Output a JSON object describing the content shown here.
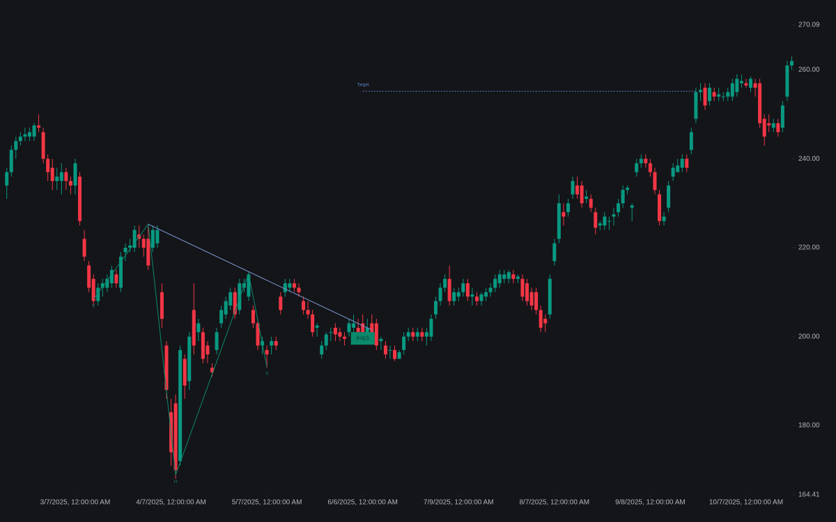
{
  "chart_data": {
    "type": "candlestick",
    "x": [
      "2025-02-13",
      "2025-02-14",
      "2025-02-18",
      "2025-02-19",
      "2025-02-20",
      "2025-02-21",
      "2025-02-24",
      "2025-02-25",
      "2025-02-26",
      "2025-02-27",
      "2025-02-28",
      "2025-03-03",
      "2025-03-04",
      "2025-03-05",
      "2025-03-06",
      "2025-03-07",
      "2025-03-10",
      "2025-03-11",
      "2025-03-12",
      "2025-03-13",
      "2025-03-14",
      "2025-03-17",
      "2025-03-18",
      "2025-03-19",
      "2025-03-20",
      "2025-03-21",
      "2025-03-24",
      "2025-03-25",
      "2025-03-26",
      "2025-03-27",
      "2025-03-28",
      "2025-03-31",
      "2025-04-01",
      "2025-04-02",
      "2025-04-03",
      "2025-04-04",
      "2025-04-07",
      "2025-04-08",
      "2025-04-09",
      "2025-04-10",
      "2025-04-11",
      "2025-04-14",
      "2025-04-15",
      "2025-04-16",
      "2025-04-17",
      "2025-04-21",
      "2025-04-22",
      "2025-04-23",
      "2025-04-24",
      "2025-04-25",
      "2025-04-28",
      "2025-04-29",
      "2025-04-30",
      "2025-05-01",
      "2025-05-02",
      "2025-05-05",
      "2025-05-06",
      "2025-05-07",
      "2025-05-08",
      "2025-05-09",
      "2025-05-12",
      "2025-05-13",
      "2025-05-14",
      "2025-05-15",
      "2025-05-16",
      "2025-05-19",
      "2025-05-20",
      "2025-05-21",
      "2025-05-22",
      "2025-05-23",
      "2025-05-27",
      "2025-05-28",
      "2025-05-29",
      "2025-05-30",
      "2025-06-02",
      "2025-06-03",
      "2025-06-04",
      "2025-06-05",
      "2025-06-06",
      "2025-06-09",
      "2025-06-10",
      "2025-06-11",
      "2025-06-12",
      "2025-06-13",
      "2025-06-16",
      "2025-06-17",
      "2025-06-18",
      "2025-06-20",
      "2025-06-23",
      "2025-06-24",
      "2025-06-25",
      "2025-06-26",
      "2025-06-27",
      "2025-06-30",
      "2025-07-01",
      "2025-07-02",
      "2025-07-03",
      "2025-07-07",
      "2025-07-08",
      "2025-07-09",
      "2025-07-10",
      "2025-07-11",
      "2025-07-14",
      "2025-07-15",
      "2025-07-16",
      "2025-07-17",
      "2025-07-18",
      "2025-07-21",
      "2025-07-22",
      "2025-07-23",
      "2025-07-24",
      "2025-07-25",
      "2025-07-28",
      "2025-07-29",
      "2025-07-30",
      "2025-07-31",
      "2025-08-01",
      "2025-08-04",
      "2025-08-05",
      "2025-08-06",
      "2025-08-07",
      "2025-08-08",
      "2025-08-11",
      "2025-08-12",
      "2025-08-13",
      "2025-08-14",
      "2025-08-15",
      "2025-08-18",
      "2025-08-19",
      "2025-08-20",
      "2025-08-21",
      "2025-08-22",
      "2025-08-25",
      "2025-08-26",
      "2025-08-27",
      "2025-08-28",
      "2025-08-29",
      "2025-09-02",
      "2025-09-03",
      "2025-09-04",
      "2025-09-05",
      "2025-09-08",
      "2025-09-09",
      "2025-09-10",
      "2025-09-11",
      "2025-09-12",
      "2025-09-15",
      "2025-09-16",
      "2025-09-17",
      "2025-09-18",
      "2025-09-19",
      "2025-09-22",
      "2025-09-23",
      "2025-09-24",
      "2025-09-25",
      "2025-09-26",
      "2025-09-29",
      "2025-09-30",
      "2025-10-01",
      "2025-10-02",
      "2025-10-03",
      "2025-10-06",
      "2025-10-07",
      "2025-10-08",
      "2025-10-09",
      "2025-10-10",
      "2025-10-13",
      "2025-10-14",
      "2025-10-15",
      "2025-10-16",
      "2025-10-17",
      "2025-10-20",
      "2025-10-21"
    ],
    "open": [
      234,
      237,
      242,
      244,
      245,
      245,
      245,
      247.5,
      246,
      240,
      238,
      235,
      235,
      237,
      235,
      234,
      236,
      222,
      216,
      213,
      208,
      211,
      211,
      212,
      214,
      211,
      219,
      220,
      220,
      223,
      222,
      222,
      220,
      221,
      210,
      198,
      183,
      185,
      172,
      195,
      190,
      206,
      201,
      201,
      198,
      193,
      197,
      203,
      205,
      207,
      210,
      206,
      211,
      209,
      206,
      203,
      198,
      197,
      198,
      199,
      209,
      210,
      211,
      212,
      211,
      208,
      206,
      205,
      202,
      196,
      198,
      201,
      202,
      201,
      200,
      201,
      202,
      202,
      203,
      200,
      203,
      203,
      199,
      198,
      197,
      197,
      195,
      197,
      200,
      201,
      200,
      201,
      200,
      200,
      205,
      208,
      211,
      213,
      208,
      209,
      210,
      212,
      209,
      209,
      208,
      209,
      210,
      211,
      212,
      213,
      213,
      214,
      213,
      213,
      212,
      210,
      210,
      206,
      204,
      205,
      217,
      222,
      228,
      228,
      232,
      234,
      234,
      231,
      231,
      228,
      225,
      225,
      226,
      227,
      228,
      230,
      233,
      229,
      237,
      239,
      240,
      239,
      237,
      232,
      226,
      229,
      236,
      237,
      238,
      240,
      242,
      249,
      255,
      256,
      253,
      255,
      254,
      254,
      254,
      254,
      255,
      257,
      257,
      256,
      257,
      257,
      249,
      248,
      247,
      248,
      247,
      254,
      261
    ],
    "high": [
      238,
      243,
      245,
      246,
      247,
      247,
      248,
      250,
      247,
      241,
      240,
      238,
      239,
      238,
      236,
      240,
      237,
      224,
      217,
      214,
      212,
      213,
      214,
      216,
      215,
      219,
      221,
      222,
      225,
      225,
      223,
      225,
      225,
      225,
      212,
      199,
      186,
      187,
      198,
      196,
      201,
      212,
      204,
      202,
      199,
      194,
      202,
      207,
      209,
      211,
      211,
      213,
      213,
      214.5,
      207,
      204,
      200,
      198,
      200,
      200,
      210,
      213,
      213,
      213,
      212,
      209,
      208,
      206,
      203,
      199,
      201,
      202,
      203,
      202,
      201,
      204,
      205,
      204,
      205,
      204,
      205,
      204,
      200,
      199,
      198,
      198,
      197,
      201,
      202,
      202,
      202,
      202,
      202,
      205,
      209,
      212,
      214,
      216,
      211,
      211,
      213,
      213,
      211,
      210,
      210,
      211,
      212,
      214,
      215,
      215,
      215,
      215,
      214,
      214,
      213,
      211,
      211,
      207,
      205,
      214,
      222,
      232,
      230,
      231,
      236,
      236,
      235,
      233,
      232,
      229,
      226,
      228,
      227,
      229,
      231,
      234,
      234,
      230,
      240,
      241,
      241,
      240,
      238,
      233,
      228,
      235,
      239,
      240,
      241,
      241,
      247,
      256,
      257,
      257,
      257,
      256,
      256,
      255,
      256,
      258,
      259,
      259,
      258,
      258.5,
      258,
      258,
      250,
      250,
      249,
      249,
      253,
      262,
      263
    ],
    "low": [
      231,
      236,
      240,
      243,
      244,
      244,
      244,
      246,
      239,
      235,
      233,
      233,
      232,
      233,
      232,
      232,
      225,
      217,
      210,
      207,
      207,
      209,
      210,
      211,
      211,
      210,
      217,
      219,
      219,
      220,
      218,
      215,
      219,
      220,
      202,
      186,
      171,
      168,
      171,
      186,
      188,
      196,
      199,
      194,
      194,
      191,
      196,
      202,
      204,
      206,
      204,
      205,
      210,
      208,
      202,
      197,
      196,
      193,
      196,
      197,
      205,
      209,
      210,
      210,
      209,
      205,
      204,
      200,
      200,
      195,
      197,
      199,
      199,
      199,
      198,
      200,
      200,
      200,
      199,
      199,
      199,
      197,
      197,
      195,
      195,
      194.5,
      195,
      196,
      199,
      199,
      199,
      199,
      198,
      199,
      204,
      207,
      210,
      207,
      207,
      208,
      209,
      208,
      207,
      207,
      207,
      208,
      209,
      210,
      211,
      212,
      212,
      212,
      212,
      208,
      207,
      206,
      205,
      201,
      201,
      204,
      216,
      221,
      225,
      227,
      231,
      231,
      229,
      230,
      228,
      223,
      224,
      224,
      224,
      225,
      227,
      229,
      232,
      226,
      236,
      238,
      238,
      236,
      232,
      225,
      225,
      228,
      235,
      237,
      237,
      237,
      241,
      248,
      253,
      251,
      252,
      253,
      253,
      253,
      253,
      253,
      254,
      256,
      256,
      255,
      254,
      247,
      243,
      246,
      246,
      245,
      246,
      253,
      260
    ],
    "close": [
      237,
      242,
      244,
      245,
      245.5,
      246,
      247.5,
      247,
      240,
      237,
      235,
      236,
      237,
      235,
      234,
      239,
      226,
      218,
      211,
      208,
      211,
      212,
      213,
      215,
      212,
      218,
      220,
      220.5,
      224,
      222,
      220,
      216,
      224,
      224,
      204,
      188,
      174,
      170,
      197,
      189,
      200,
      198,
      203,
      195,
      196,
      192,
      201,
      206,
      208,
      210,
      205,
      212,
      212,
      214,
      203,
      198,
      199,
      196,
      199,
      198,
      206,
      212,
      212,
      211,
      210,
      206,
      205,
      201,
      202.5,
      198,
      200.5,
      201,
      200.5,
      200,
      199.5,
      203,
      203,
      201,
      200,
      202,
      200,
      198,
      199.5,
      196,
      197,
      195,
      196.5,
      200,
      201,
      200,
      201,
      200,
      201,
      204,
      208,
      211,
      213,
      208,
      210,
      210,
      212,
      209,
      209.5,
      208,
      209.5,
      210,
      211,
      213,
      214,
      214,
      214.5,
      213,
      213.5,
      209,
      208,
      207,
      206,
      202,
      203,
      213,
      221,
      230,
      227,
      230,
      235,
      232,
      230,
      231.5,
      229,
      224.5,
      225.5,
      227,
      226,
      227.5,
      230,
      233,
      233.5,
      229.5,
      239,
      240,
      239,
      237,
      233,
      226,
      227,
      234,
      238,
      238.5,
      240,
      238,
      246,
      255,
      255.5,
      252,
      256,
      254,
      254.5,
      254,
      255,
      257,
      258,
      257.5,
      256.5,
      258,
      256,
      248,
      245,
      247.5,
      248,
      246,
      252,
      261,
      262
    ],
    "up_color": "#089981",
    "down_color": "#f23645",
    "ylim": [
      164.41,
      270.09
    ],
    "yticks": [
      270.09,
      {
        "value": 260,
        "label": "260.00"
      },
      {
        "value": 240,
        "label": "240.00"
      },
      {
        "value": 220,
        "label": "220.00"
      },
      {
        "value": 200,
        "label": "200.00"
      },
      {
        "value": 180,
        "label": "180.00"
      },
      164.41
    ],
    "xticks": [
      {
        "value": "2025-03-07",
        "label": "3/7/2025, 12:00:00 AM"
      },
      {
        "value": "2025-04-07",
        "label": "4/7/2025, 12:00:00 AM"
      },
      {
        "value": "2025-05-07",
        "label": "5/7/2025, 12:00:00 AM"
      },
      {
        "value": "2025-06-06",
        "label": "6/6/2025, 12:00:00 AM"
      },
      {
        "value": "2025-07-09",
        "label": "7/9/2025, 12:00:00 AM"
      },
      {
        "value": "2025-08-07",
        "label": "8/7/2025, 12:00:00 AM"
      },
      {
        "value": "2025-09-08",
        "label": "9/8/2025, 12:00:00 AM"
      },
      {
        "value": "2025-10-07",
        "label": "10/7/2025, 12:00:00 AM"
      }
    ],
    "pattern": {
      "label": "IH&S",
      "color": "#0b8a6c",
      "points": [
        {
          "x": "2025-03-13",
          "y": 208.4,
          "label": "S"
        },
        {
          "x": "2025-03-31",
          "y": 225.3
        },
        {
          "x": "2025-04-08",
          "y": 168.9,
          "label": "H"
        },
        {
          "x": "2025-05-01",
          "y": 214.2
        },
        {
          "x": "2025-05-07",
          "y": 193.2,
          "label": "S"
        }
      ],
      "neckline": {
        "color": "#7f9ad8",
        "points": [
          {
            "x": "2025-03-31",
            "y": 225.3
          },
          {
            "x": "2025-06-10",
            "y": 201.5
          }
        ]
      },
      "badge": {
        "x": "2025-06-06",
        "y": 199.6
      }
    },
    "target": {
      "label": "Target",
      "color": "#5b84c8",
      "y": 255.2,
      "x_start": "2025-06-06",
      "x_end": "2025-09-22"
    }
  }
}
